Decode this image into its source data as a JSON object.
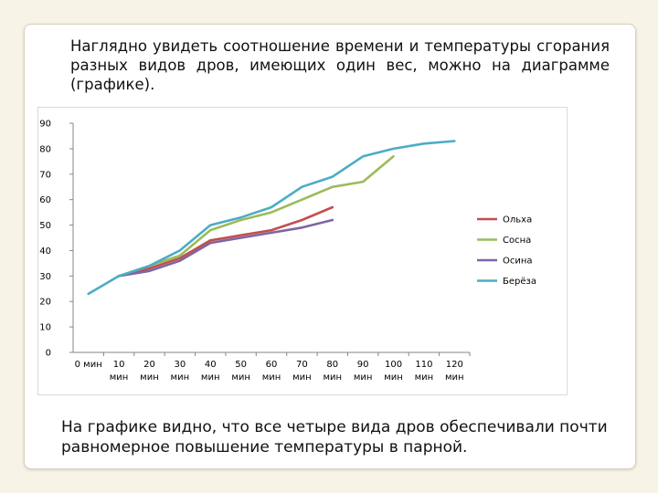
{
  "slide": {
    "intro_text": "Наглядно увидеть соотношение времени и температуры сгорания разных видов дров, имеющих один вес, можно на диаграмме (графике).",
    "outro_text": "На графике видно, что все четыре вида дров обеспечивали почти равномерное повышение температуры в парной."
  },
  "chart_data": {
    "type": "line",
    "title": "",
    "xlabel": "",
    "ylabel": "",
    "categories": [
      "0 мин",
      "10 мин",
      "20 мин",
      "30 мин",
      "40 мин",
      "50 мин",
      "60 мин",
      "70 мин",
      "80 мин",
      "90 мин",
      "100 мин",
      "110 мин",
      "120 мин"
    ],
    "ylim": [
      0,
      90
    ],
    "yticks": [
      0,
      10,
      20,
      30,
      40,
      50,
      60,
      70,
      80,
      90
    ],
    "grid": false,
    "legend": "right",
    "series": [
      {
        "name": "Ольха",
        "color": "#c0504d",
        "values": [
          null,
          30,
          33,
          37,
          44,
          46,
          48,
          52,
          57,
          null,
          null,
          null,
          null
        ]
      },
      {
        "name": "Сосна",
        "color": "#9bbb59",
        "values": [
          null,
          30,
          34,
          38,
          48,
          52,
          55,
          60,
          65,
          67,
          77,
          null,
          null
        ]
      },
      {
        "name": "Осина",
        "color": "#8064a2",
        "values": [
          null,
          30,
          32,
          36,
          43,
          45,
          47,
          49,
          52,
          null,
          null,
          null,
          null
        ]
      },
      {
        "name": "Берёза",
        "color": "#4bacc6",
        "values": [
          23,
          30,
          34,
          40,
          50,
          53,
          57,
          65,
          69,
          77,
          80,
          82,
          83
        ]
      }
    ]
  }
}
